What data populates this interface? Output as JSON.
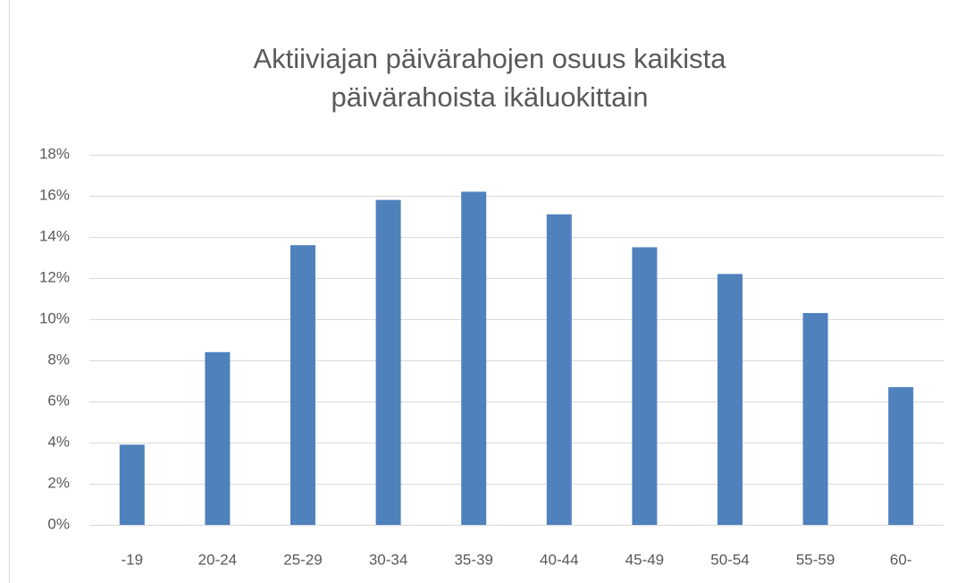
{
  "chart_data": {
    "type": "bar",
    "title": [
      "Aktiiviajan päivärahojen osuus kaikista",
      "päivärahoista ikäluokittain"
    ],
    "categories": [
      "-19",
      "20-24",
      "25-29",
      "30-34",
      "35-39",
      "40-44",
      "45-49",
      "50-54",
      "55-59",
      "60-"
    ],
    "values": [
      3.9,
      8.4,
      13.6,
      15.8,
      16.2,
      15.1,
      13.5,
      12.2,
      10.3,
      6.7
    ],
    "color": "#4f81bd",
    "ylim": [
      0,
      18
    ],
    "yticks": [
      {
        "value": 0,
        "label": "0%"
      },
      {
        "value": 2,
        "label": "2%"
      },
      {
        "value": 4,
        "label": "4%"
      },
      {
        "value": 6,
        "label": "6%"
      },
      {
        "value": 8,
        "label": "8%"
      },
      {
        "value": 10,
        "label": "10%"
      },
      {
        "value": 12,
        "label": "12%"
      },
      {
        "value": 14,
        "label": "14%"
      },
      {
        "value": 16,
        "label": "16%"
      },
      {
        "value": 18,
        "label": "18%"
      }
    ],
    "grid": true
  }
}
